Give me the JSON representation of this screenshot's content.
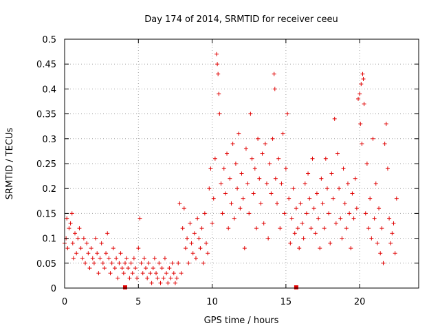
{
  "chart_data": {
    "type": "scatter",
    "title": "Day 174 of 2014, SRMTID for receiver ceeu",
    "xlabel": "GPS time / hours",
    "ylabel": "SRMTID / TECUs",
    "xlim": [
      0,
      24
    ],
    "ylim": [
      0,
      0.5
    ],
    "xticks": [
      0,
      5,
      10,
      15,
      20
    ],
    "xtick_labels": [
      "0",
      "5",
      "10",
      "15",
      "20"
    ],
    "yticks": [
      0,
      0.05,
      0.1,
      0.15,
      0.2,
      0.25,
      0.3,
      0.35,
      0.4,
      0.45,
      0.5
    ],
    "ytick_labels": [
      "0",
      "0.05",
      "0.1",
      "0.15",
      "0.2",
      "0.25",
      "0.3",
      "0.35",
      "0.4",
      "0.45",
      "0.5"
    ],
    "grid": true,
    "marker": "+",
    "color": "#e00000",
    "points": [
      [
        0.0,
        0.09
      ],
      [
        0.1,
        0.1
      ],
      [
        0.15,
        0.14
      ],
      [
        0.2,
        0.08
      ],
      [
        0.3,
        0.12
      ],
      [
        0.4,
        0.13
      ],
      [
        0.5,
        0.15
      ],
      [
        0.55,
        0.09
      ],
      [
        0.6,
        0.06
      ],
      [
        0.7,
        0.11
      ],
      [
        0.8,
        0.07
      ],
      [
        0.9,
        0.1
      ],
      [
        1.0,
        0.12
      ],
      [
        1.1,
        0.08
      ],
      [
        1.2,
        0.06
      ],
      [
        1.3,
        0.1
      ],
      [
        1.4,
        0.05
      ],
      [
        1.5,
        0.09
      ],
      [
        1.6,
        0.07
      ],
      [
        1.7,
        0.04
      ],
      [
        1.8,
        0.08
      ],
      [
        1.9,
        0.06
      ],
      [
        2.0,
        0.05
      ],
      [
        2.1,
        0.1
      ],
      [
        2.2,
        0.07
      ],
      [
        2.3,
        0.03
      ],
      [
        2.4,
        0.06
      ],
      [
        2.5,
        0.09
      ],
      [
        2.6,
        0.05
      ],
      [
        2.7,
        0.04
      ],
      [
        2.8,
        0.07
      ],
      [
        2.9,
        0.11
      ],
      [
        3.0,
        0.06
      ],
      [
        3.1,
        0.03
      ],
      [
        3.2,
        0.05
      ],
      [
        3.3,
        0.08
      ],
      [
        3.4,
        0.04
      ],
      [
        3.5,
        0.06
      ],
      [
        3.6,
        0.02
      ],
      [
        3.7,
        0.05
      ],
      [
        3.8,
        0.07
      ],
      [
        3.9,
        0.04
      ],
      [
        4.0,
        0.03
      ],
      [
        4.1,
        0.05
      ],
      [
        4.2,
        0.06
      ],
      [
        4.3,
        0.04
      ],
      [
        4.4,
        0.02
      ],
      [
        4.5,
        0.05
      ],
      [
        4.6,
        0.03
      ],
      [
        4.7,
        0.06
      ],
      [
        4.8,
        0.04
      ],
      [
        4.9,
        0.02
      ],
      [
        5.0,
        0.08
      ],
      [
        5.1,
        0.14
      ],
      [
        5.2,
        0.05
      ],
      [
        5.3,
        0.03
      ],
      [
        5.4,
        0.06
      ],
      [
        5.5,
        0.04
      ],
      [
        5.6,
        0.02
      ],
      [
        5.7,
        0.05
      ],
      [
        5.8,
        0.03
      ],
      [
        5.9,
        0.01
      ],
      [
        6.0,
        0.04
      ],
      [
        6.1,
        0.06
      ],
      [
        6.2,
        0.03
      ],
      [
        6.3,
        0.02
      ],
      [
        6.4,
        0.05
      ],
      [
        6.5,
        0.01
      ],
      [
        6.6,
        0.04
      ],
      [
        6.7,
        0.02
      ],
      [
        6.8,
        0.06
      ],
      [
        6.9,
        0.03
      ],
      [
        7.0,
        0.01
      ],
      [
        7.1,
        0.04
      ],
      [
        7.2,
        0.02
      ],
      [
        7.3,
        0.05
      ],
      [
        7.4,
        0.03
      ],
      [
        7.5,
        0.01
      ],
      [
        7.6,
        0.02
      ],
      [
        7.7,
        0.05
      ],
      [
        7.8,
        0.17
      ],
      [
        7.9,
        0.03
      ],
      [
        8.0,
        0.12
      ],
      [
        8.1,
        0.16
      ],
      [
        8.2,
        0.08
      ],
      [
        8.3,
        0.1
      ],
      [
        8.4,
        0.05
      ],
      [
        8.5,
        0.13
      ],
      [
        8.6,
        0.09
      ],
      [
        8.7,
        0.07
      ],
      [
        8.8,
        0.11
      ],
      [
        8.9,
        0.06
      ],
      [
        9.0,
        0.14
      ],
      [
        9.1,
        0.1
      ],
      [
        9.2,
        0.08
      ],
      [
        9.3,
        0.12
      ],
      [
        9.4,
        0.05
      ],
      [
        9.5,
        0.15
      ],
      [
        9.6,
        0.09
      ],
      [
        9.7,
        0.07
      ],
      [
        9.8,
        0.2
      ],
      [
        9.9,
        0.24
      ],
      [
        10.0,
        0.13
      ],
      [
        10.1,
        0.18
      ],
      [
        10.2,
        0.26
      ],
      [
        10.3,
        0.47
      ],
      [
        10.35,
        0.45
      ],
      [
        10.4,
        0.43
      ],
      [
        10.45,
        0.39
      ],
      [
        10.5,
        0.35
      ],
      [
        10.6,
        0.21
      ],
      [
        10.7,
        0.15
      ],
      [
        10.8,
        0.24
      ],
      [
        10.9,
        0.19
      ],
      [
        11.0,
        0.27
      ],
      [
        11.1,
        0.12
      ],
      [
        11.2,
        0.22
      ],
      [
        11.3,
        0.17
      ],
      [
        11.4,
        0.29
      ],
      [
        11.5,
        0.14
      ],
      [
        11.6,
        0.25
      ],
      [
        11.7,
        0.2
      ],
      [
        11.8,
        0.31
      ],
      [
        11.9,
        0.16
      ],
      [
        12.0,
        0.23
      ],
      [
        12.1,
        0.18
      ],
      [
        12.2,
        0.08
      ],
      [
        12.3,
        0.28
      ],
      [
        12.4,
        0.21
      ],
      [
        12.5,
        0.15
      ],
      [
        12.6,
        0.35
      ],
      [
        12.7,
        0.26
      ],
      [
        12.8,
        0.19
      ],
      [
        12.9,
        0.24
      ],
      [
        13.0,
        0.12
      ],
      [
        13.1,
        0.3
      ],
      [
        13.2,
        0.22
      ],
      [
        13.3,
        0.17
      ],
      [
        13.4,
        0.27
      ],
      [
        13.5,
        0.13
      ],
      [
        13.6,
        0.29
      ],
      [
        13.7,
        0.21
      ],
      [
        13.8,
        0.1
      ],
      [
        13.9,
        0.25
      ],
      [
        14.0,
        0.19
      ],
      [
        14.1,
        0.3
      ],
      [
        14.2,
        0.43
      ],
      [
        14.25,
        0.4
      ],
      [
        14.3,
        0.22
      ],
      [
        14.4,
        0.17
      ],
      [
        14.5,
        0.26
      ],
      [
        14.6,
        0.12
      ],
      [
        14.7,
        0.21
      ],
      [
        14.8,
        0.31
      ],
      [
        14.9,
        0.15
      ],
      [
        15.0,
        0.24
      ],
      [
        15.1,
        0.35
      ],
      [
        15.2,
        0.18
      ],
      [
        15.3,
        0.09
      ],
      [
        15.4,
        0.14
      ],
      [
        15.5,
        0.2
      ],
      [
        15.6,
        0.11
      ],
      [
        15.7,
        0.16
      ],
      [
        15.8,
        0.12
      ],
      [
        15.9,
        0.08
      ],
      [
        16.0,
        0.17
      ],
      [
        16.1,
        0.13
      ],
      [
        16.2,
        0.1
      ],
      [
        16.3,
        0.21
      ],
      [
        16.4,
        0.15
      ],
      [
        16.5,
        0.23
      ],
      [
        16.6,
        0.18
      ],
      [
        16.7,
        0.12
      ],
      [
        16.8,
        0.26
      ],
      [
        16.9,
        0.16
      ],
      [
        17.0,
        0.11
      ],
      [
        17.1,
        0.19
      ],
      [
        17.2,
        0.14
      ],
      [
        17.3,
        0.08
      ],
      [
        17.4,
        0.22
      ],
      [
        17.5,
        0.17
      ],
      [
        17.6,
        0.12
      ],
      [
        17.7,
        0.26
      ],
      [
        17.8,
        0.2
      ],
      [
        17.9,
        0.15
      ],
      [
        18.0,
        0.09
      ],
      [
        18.1,
        0.23
      ],
      [
        18.2,
        0.18
      ],
      [
        18.3,
        0.34
      ],
      [
        18.4,
        0.13
      ],
      [
        18.5,
        0.27
      ],
      [
        18.6,
        0.2
      ],
      [
        18.7,
        0.14
      ],
      [
        18.8,
        0.1
      ],
      [
        18.9,
        0.24
      ],
      [
        19.0,
        0.17
      ],
      [
        19.1,
        0.12
      ],
      [
        19.2,
        0.21
      ],
      [
        19.3,
        0.15
      ],
      [
        19.4,
        0.08
      ],
      [
        19.5,
        0.19
      ],
      [
        19.6,
        0.14
      ],
      [
        19.7,
        0.22
      ],
      [
        19.8,
        0.16
      ],
      [
        19.9,
        0.38
      ],
      [
        20.0,
        0.39
      ],
      [
        20.05,
        0.33
      ],
      [
        20.1,
        0.41
      ],
      [
        20.15,
        0.29
      ],
      [
        20.2,
        0.43
      ],
      [
        20.25,
        0.42
      ],
      [
        20.3,
        0.37
      ],
      [
        20.4,
        0.15
      ],
      [
        20.5,
        0.25
      ],
      [
        20.6,
        0.12
      ],
      [
        20.7,
        0.18
      ],
      [
        20.8,
        0.1
      ],
      [
        20.9,
        0.3
      ],
      [
        21.0,
        0.14
      ],
      [
        21.1,
        0.21
      ],
      [
        21.2,
        0.09
      ],
      [
        21.3,
        0.16
      ],
      [
        21.4,
        0.07
      ],
      [
        21.5,
        0.12
      ],
      [
        21.6,
        0.05
      ],
      [
        21.7,
        0.29
      ],
      [
        21.8,
        0.33
      ],
      [
        21.9,
        0.24
      ],
      [
        22.0,
        0.14
      ],
      [
        22.1,
        0.09
      ],
      [
        22.2,
        0.11
      ],
      [
        22.3,
        0.13
      ],
      [
        22.4,
        0.07
      ],
      [
        22.5,
        0.18
      ]
    ],
    "zero_flags": [
      4.1,
      15.7
    ]
  }
}
